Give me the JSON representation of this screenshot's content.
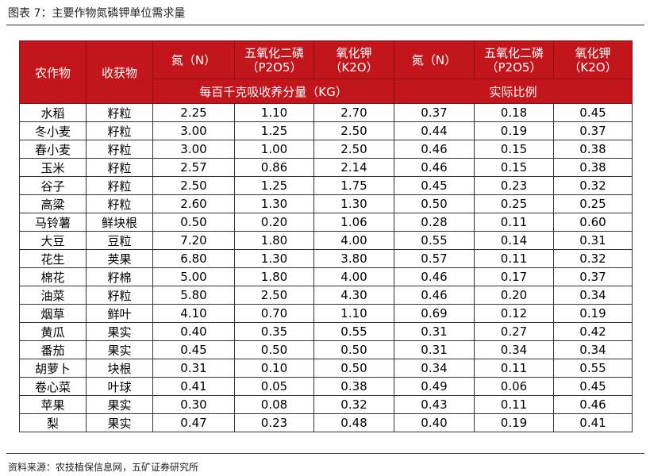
{
  "caption": "图表 7：主要作物氮磷钾单位需求量",
  "source": "资料来源：农技植保信息网，五矿证券研究所",
  "header": {
    "crop": "农作物",
    "part": "收获物",
    "n": "氮（N）",
    "p_line1": "五氧化二磷",
    "p_line2": "（P2O5）",
    "k_line1": "氧化钾",
    "k_line2": "（K2O）",
    "group_amount": "每百千克吸收养分量（KG）",
    "group_ratio": "实际比例"
  },
  "rows": [
    {
      "crop": "水稻",
      "part": "籽粒",
      "n": "2.25",
      "p": "1.10",
      "k": "2.70",
      "rn": "0.37",
      "rp": "0.18",
      "rk": "0.45"
    },
    {
      "crop": "冬小麦",
      "part": "籽粒",
      "n": "3.00",
      "p": "1.25",
      "k": "2.50",
      "rn": "0.44",
      "rp": "0.19",
      "rk": "0.37"
    },
    {
      "crop": "春小麦",
      "part": "籽粒",
      "n": "3.00",
      "p": "1.00",
      "k": "2.50",
      "rn": "0.46",
      "rp": "0.15",
      "rk": "0.38"
    },
    {
      "crop": "玉米",
      "part": "籽粒",
      "n": "2.57",
      "p": "0.86",
      "k": "2.14",
      "rn": "0.46",
      "rp": "0.15",
      "rk": "0.38"
    },
    {
      "crop": "谷子",
      "part": "籽粒",
      "n": "2.50",
      "p": "1.25",
      "k": "1.75",
      "rn": "0.45",
      "rp": "0.23",
      "rk": "0.32"
    },
    {
      "crop": "高粱",
      "part": "籽粒",
      "n": "2.60",
      "p": "1.30",
      "k": "1.30",
      "rn": "0.50",
      "rp": "0.25",
      "rk": "0.25"
    },
    {
      "crop": "马铃薯",
      "part": "鲜块根",
      "n": "0.50",
      "p": "0.20",
      "k": "1.06",
      "rn": "0.28",
      "rp": "0.11",
      "rk": "0.60"
    },
    {
      "crop": "大豆",
      "part": "豆粒",
      "n": "7.20",
      "p": "1.80",
      "k": "4.00",
      "rn": "0.55",
      "rp": "0.14",
      "rk": "0.31"
    },
    {
      "crop": "花生",
      "part": "荚果",
      "n": "6.80",
      "p": "1.30",
      "k": "3.80",
      "rn": "0.57",
      "rp": "0.11",
      "rk": "0.32"
    },
    {
      "crop": "棉花",
      "part": "籽棉",
      "n": "5.00",
      "p": "1.80",
      "k": "4.00",
      "rn": "0.46",
      "rp": "0.17",
      "rk": "0.37"
    },
    {
      "crop": "油菜",
      "part": "籽粒",
      "n": "5.80",
      "p": "2.50",
      "k": "4.30",
      "rn": "0.46",
      "rp": "0.20",
      "rk": "0.34"
    },
    {
      "crop": "烟草",
      "part": "鲜叶",
      "n": "4.10",
      "p": "0.70",
      "k": "1.10",
      "rn": "0.69",
      "rp": "0.12",
      "rk": "0.19"
    },
    {
      "crop": "黄瓜",
      "part": "果实",
      "n": "0.40",
      "p": "0.35",
      "k": "0.55",
      "rn": "0.31",
      "rp": "0.27",
      "rk": "0.42"
    },
    {
      "crop": "番茄",
      "part": "果实",
      "n": "0.45",
      "p": "0.50",
      "k": "0.50",
      "rn": "0.31",
      "rp": "0.34",
      "rk": "0.34"
    },
    {
      "crop": "胡萝卜",
      "part": "块根",
      "n": "0.31",
      "p": "0.10",
      "k": "0.50",
      "rn": "0.34",
      "rp": "0.11",
      "rk": "0.55"
    },
    {
      "crop": "卷心菜",
      "part": "叶球",
      "n": "0.41",
      "p": "0.05",
      "k": "0.38",
      "rn": "0.49",
      "rp": "0.06",
      "rk": "0.45"
    },
    {
      "crop": "苹果",
      "part": "果实",
      "n": "0.30",
      "p": "0.08",
      "k": "0.32",
      "rn": "0.43",
      "rp": "0.11",
      "rk": "0.46"
    },
    {
      "crop": "梨",
      "part": "果实",
      "n": "0.47",
      "p": "0.23",
      "k": "0.48",
      "rn": "0.40",
      "rp": "0.19",
      "rk": "0.41"
    }
  ],
  "colors": {
    "header_bg": "#c3161c",
    "header_text": "#ffffff"
  }
}
